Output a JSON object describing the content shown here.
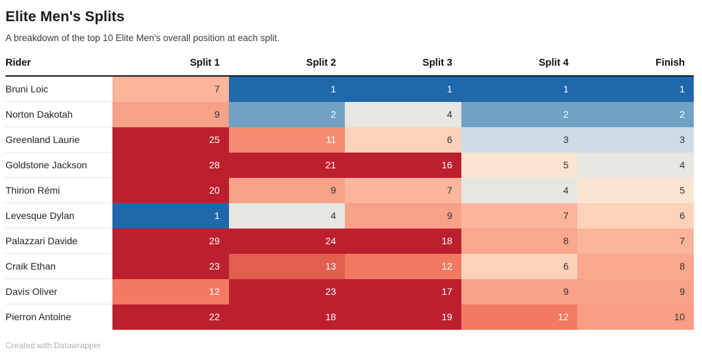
{
  "title": "Elite Men's Splits",
  "subtitle": "A breakdown of the top 10 Elite Men's overall position at each split.",
  "footer": "Created with Datawrapper",
  "chart_data": {
    "type": "heatmap",
    "title": "Elite Men's Splits",
    "subtitle": "A breakdown of the top 10 Elite Men's overall position at each split.",
    "columns": [
      "Rider",
      "Split 1",
      "Split 2",
      "Split 3",
      "Split 4",
      "Finish"
    ],
    "rows": [
      {
        "rider": "Bruni Loic",
        "positions": [
          7,
          1,
          1,
          1,
          1
        ]
      },
      {
        "rider": "Norton Dakotah",
        "positions": [
          9,
          2,
          4,
          2,
          2
        ]
      },
      {
        "rider": "Greenland Laurie",
        "positions": [
          25,
          11,
          6,
          3,
          3
        ]
      },
      {
        "rider": "Goldstone Jackson",
        "positions": [
          28,
          21,
          16,
          5,
          4
        ]
      },
      {
        "rider": "Thirion Rémi",
        "positions": [
          20,
          9,
          7,
          4,
          5
        ]
      },
      {
        "rider": "Levesque Dylan",
        "positions": [
          1,
          4,
          9,
          7,
          6
        ]
      },
      {
        "rider": "Palazzari Davide",
        "positions": [
          29,
          24,
          18,
          8,
          7
        ]
      },
      {
        "rider": "Craik Ethan",
        "positions": [
          23,
          13,
          12,
          6,
          8
        ]
      },
      {
        "rider": "Davis Oliver",
        "positions": [
          12,
          23,
          17,
          9,
          9
        ]
      },
      {
        "rider": "Pierron Antoine",
        "positions": [
          22,
          18,
          19,
          12,
          10
        ]
      }
    ],
    "value_range": [
      1,
      29
    ],
    "legend_position": "none",
    "color_scale": {
      "type": "diverging-blue-red",
      "map": {
        "1": {
          "bg": "#1f68ab",
          "fg": "#ffffff"
        },
        "2": {
          "bg": "#6fa2c5",
          "fg": "#ffffff"
        },
        "3": {
          "bg": "#cedde5",
          "fg": "#333333"
        },
        "4": {
          "bg": "#e7e6e1",
          "fg": "#333333"
        },
        "5": {
          "bg": "#fae5d3",
          "fg": "#333333"
        },
        "6": {
          "bg": "#fcd2bb",
          "fg": "#333333"
        },
        "7": {
          "bg": "#fbb59b",
          "fg": "#333333"
        },
        "8": {
          "bg": "#f9a78d",
          "fg": "#333333"
        },
        "9": {
          "bg": "#f8a189",
          "fg": "#333333"
        },
        "10": {
          "bg": "#f89e84",
          "fg": "#333333"
        },
        "11": {
          "bg": "#f58b71",
          "fg": "#ffffff"
        },
        "12": {
          "bg": "#f37a62",
          "fg": "#ffffff"
        },
        "13": {
          "bg": "#e25e4f",
          "fg": "#ffffff"
        },
        "16": {
          "bg": "#bc202f",
          "fg": "#ffffff"
        },
        "17": {
          "bg": "#bc202f",
          "fg": "#ffffff"
        },
        "18": {
          "bg": "#bc202f",
          "fg": "#ffffff"
        },
        "19": {
          "bg": "#bc202f",
          "fg": "#ffffff"
        },
        "20": {
          "bg": "#bc202f",
          "fg": "#ffffff"
        },
        "21": {
          "bg": "#bc202f",
          "fg": "#ffffff"
        },
        "22": {
          "bg": "#bc202f",
          "fg": "#ffffff"
        },
        "23": {
          "bg": "#bc202f",
          "fg": "#ffffff"
        },
        "24": {
          "bg": "#bc202f",
          "fg": "#ffffff"
        },
        "25": {
          "bg": "#bc202f",
          "fg": "#ffffff"
        },
        "28": {
          "bg": "#bc202f",
          "fg": "#ffffff"
        },
        "29": {
          "bg": "#bc202f",
          "fg": "#ffffff"
        },
        "default": {
          "bg": "#bc202f",
          "fg": "#ffffff"
        }
      }
    }
  }
}
